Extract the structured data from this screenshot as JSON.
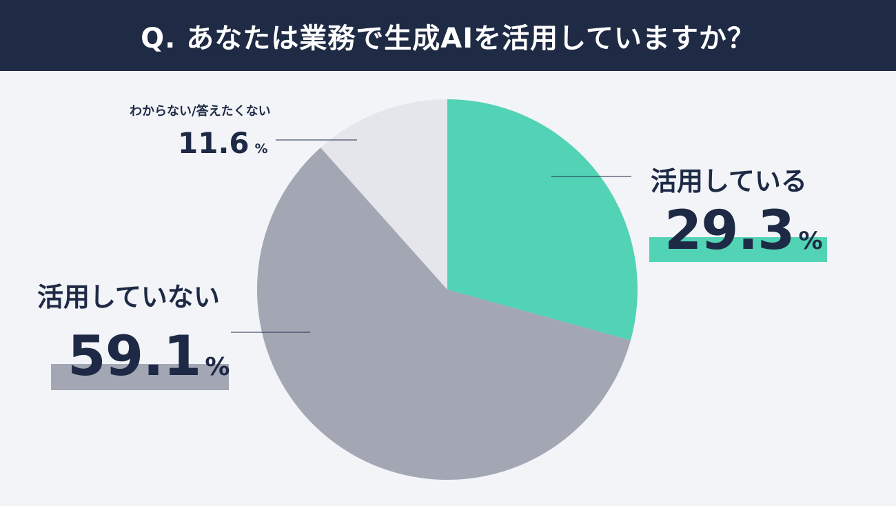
{
  "header": {
    "title": "Q. あなたは業務で生成AIを活用していますか？"
  },
  "colors": {
    "header_bg": "#1f2a45",
    "background": "#f2f4f8",
    "using": "#52d3b5",
    "not_using": "#a2a7b3",
    "unknown": "#e4e6ec",
    "text": "#1e2a45"
  },
  "chart_data": {
    "type": "pie",
    "title": "Q. あなたは業務で生成AIを活用していますか？",
    "start_angle": "12 o'clock",
    "direction": "clockwise",
    "unit": "%",
    "slices": [
      {
        "label": "活用している",
        "value": 29.3,
        "value_label": "29.3",
        "color": "#52d3b5"
      },
      {
        "label": "活用していない",
        "value": 59.1,
        "value_label": "59.1",
        "color": "#a2a7b3"
      },
      {
        "label": "わからない/答えたくない",
        "value": 11.6,
        "value_label": "11.6",
        "color": "#e4e6ec"
      }
    ]
  }
}
